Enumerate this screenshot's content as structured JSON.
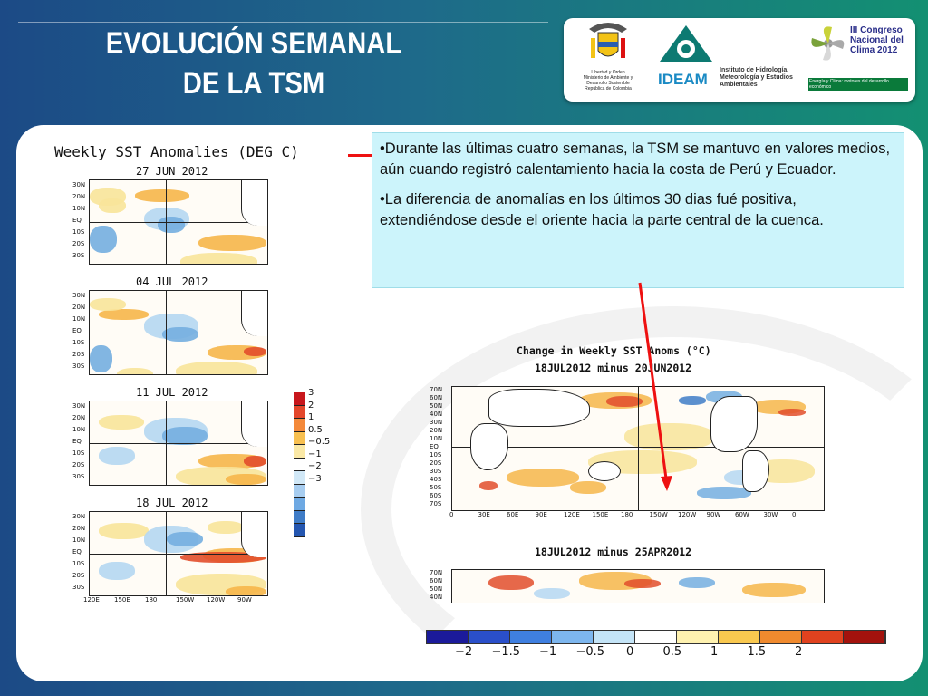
{
  "header": {
    "title_line1": "EVOLUCIÓN SEMANAL",
    "title_line2": "DE LA TSM"
  },
  "logos": [
    {
      "name": "colombia-ministry-logo",
      "caption": "Libertad y Orden\nMinisterio de Ambiente y Desarrollo Sostenible\nRepública de Colombia"
    },
    {
      "name": "ideam-logo",
      "wordmark": "IDEAM",
      "caption": "Instituto de Hidrología, Meteorología y Estudios Ambientales"
    },
    {
      "name": "congreso-clima-logo",
      "caption": "III Congreso Nacional del Clima 2012",
      "tagline": "Energía y Clima: motores del desarrollo económico"
    }
  ],
  "left_figure": {
    "title": "Weekly SST Anomalies (DEG C)",
    "weeks": [
      "27 JUN 2012",
      "04 JUL 2012",
      "11 JUL 2012",
      "18 JUL 2012"
    ],
    "lat_ticks": [
      "30N",
      "20N",
      "10N",
      "EQ",
      "10S",
      "20S",
      "30S"
    ],
    "lon_ticks": [
      "120E",
      "150E",
      "180",
      "150W",
      "120W",
      "90W"
    ],
    "legend_labels": [
      "3",
      "2",
      "1",
      "0.5",
      "−0.5",
      "−1",
      "−2",
      "−3"
    ],
    "legend_colors": [
      "#c8171c",
      "#e4472b",
      "#f4893a",
      "#f8c050",
      "#fbe9a6",
      "#ffffff",
      "#d1e8f7",
      "#a7cdf0",
      "#6ea9e3",
      "#3f7cc7",
      "#2456b0"
    ]
  },
  "notes": {
    "bullet1": "•Durante las últimas cuatro semanas, la TSM se mantuvo en valores medios, aún cuando registró calentamiento hacia la costa de Perú y Ecuador.",
    "bullet2": "•La diferencia de anomalías en los últimos 30 dias fué positiva, extendiéndose desde el oriente hacia la parte central de la cuenca."
  },
  "right_figure": {
    "title": "Change in Weekly SST Anoms (°C)",
    "subtitle1": "18JUL2012 minus 20JUN2012",
    "subtitle2": "18JUL2012 minus 25APR2012",
    "lat_ticks": [
      "70N",
      "60N",
      "50N",
      "40N",
      "30N",
      "20N",
      "10N",
      "EQ",
      "10S",
      "20S",
      "30S",
      "40S",
      "50S",
      "60S",
      "70S"
    ],
    "lat_ticks_lower": [
      "70N",
      "60N",
      "50N",
      "40N"
    ],
    "lon_ticks": [
      "0",
      "30E",
      "60E",
      "90E",
      "120E",
      "150E",
      "180",
      "150W",
      "120W",
      "90W",
      "60W",
      "30W",
      "0"
    ],
    "colorbar_labels": [
      "−2",
      "−1.5",
      "−1",
      "−0.5",
      "0",
      "0.5",
      "1",
      "1.5",
      "2"
    ],
    "colorbar_colors": [
      "#1b1a9a",
      "#2a4fc9",
      "#3f7fe0",
      "#7db6ee",
      "#c4e4f7",
      "#ffffff",
      "#fff2b0",
      "#f9c84f",
      "#f08a2e",
      "#e0421f",
      "#a3120d"
    ]
  }
}
